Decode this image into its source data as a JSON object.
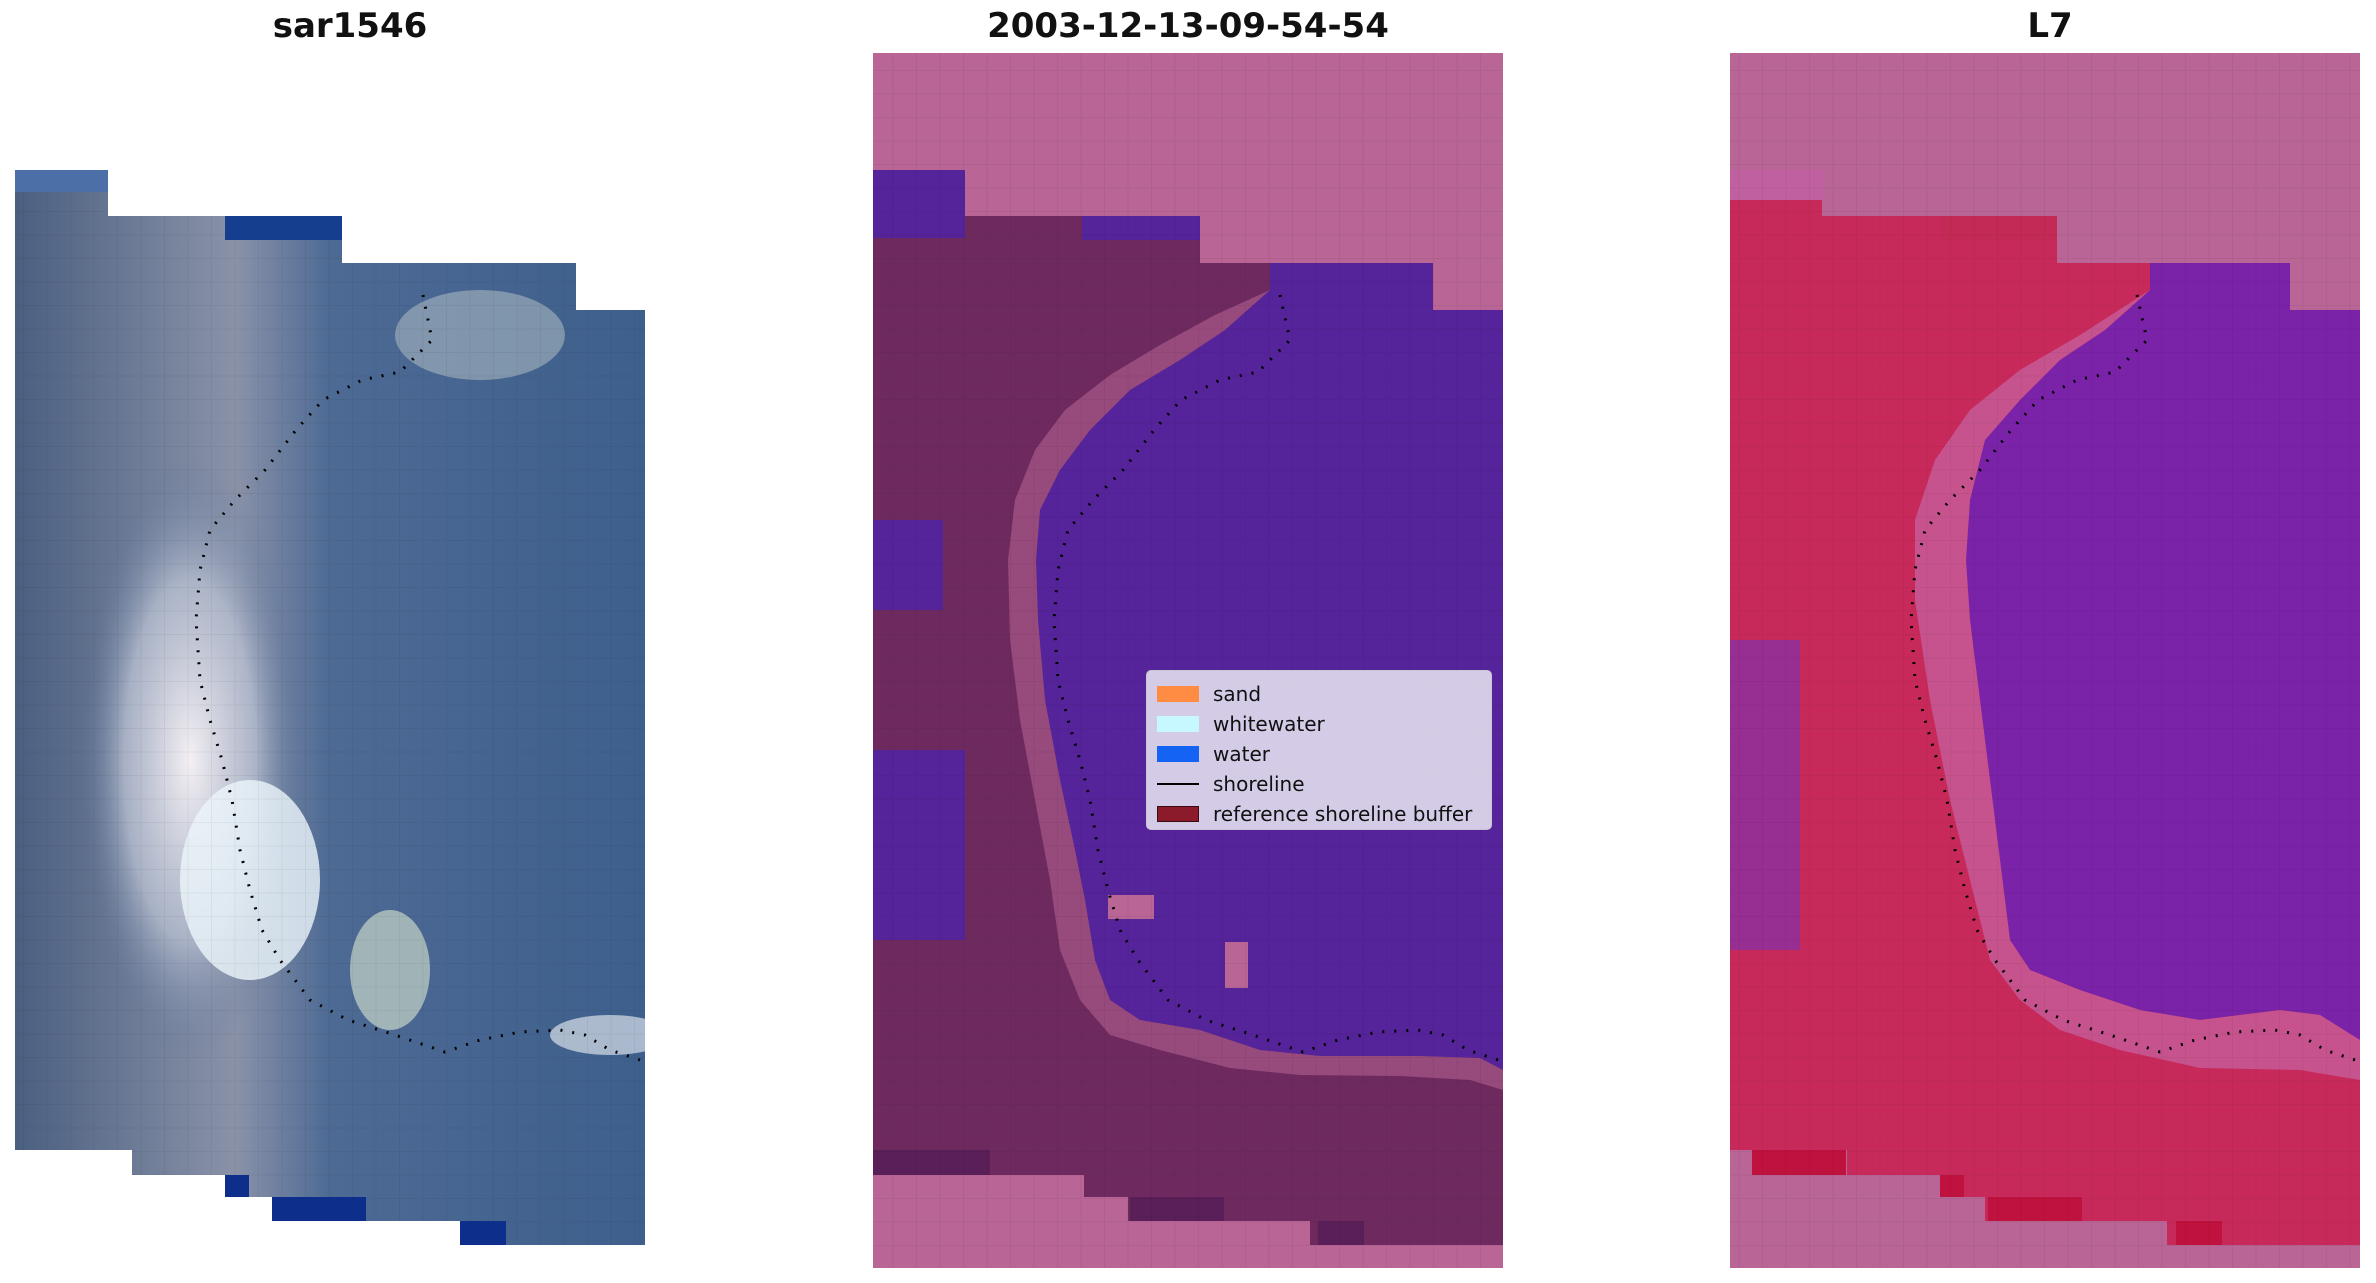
{
  "panels": [
    {
      "title": "sar1546"
    },
    {
      "title": "2003-12-13-09-54-54"
    },
    {
      "title": "L7"
    }
  ],
  "legend": {
    "items": [
      {
        "label": "sand",
        "color": "#ff8c42",
        "kind": "patch"
      },
      {
        "label": "whitewater",
        "color": "#c8f8ff",
        "kind": "patch"
      },
      {
        "label": "water",
        "color": "#1463f3",
        "kind": "patch"
      },
      {
        "label": "shoreline",
        "color": "#000000",
        "kind": "line"
      },
      {
        "label": "reference shoreline buffer",
        "color": "#8b1a2a",
        "kind": "patch"
      }
    ]
  },
  "colors": {
    "rgb_water": "#3f5f8f",
    "rgb_bright": "#e8ecf2",
    "class_land": "#6e2a5e",
    "class_water": "#55249a",
    "class_sand_buffer": "#b85a94",
    "mndwi_land": "#c72a5a",
    "mndwi_water": "#7a22a8",
    "nodata_pink": "#b96596"
  }
}
